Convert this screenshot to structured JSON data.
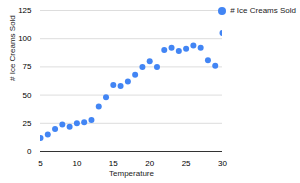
{
  "chart_data": {
    "type": "scatter",
    "x_label": "Temperature",
    "y_label": "# Ice Creams Sold",
    "x": [
      5,
      6,
      7,
      8,
      9,
      10,
      11,
      12,
      13,
      14,
      15,
      16,
      17,
      18,
      19,
      20,
      21,
      22,
      23,
      24,
      25,
      26,
      27,
      28,
      29,
      30
    ],
    "series": [
      {
        "name": "# Ice Creams Sold",
        "color": "#4285f4",
        "marker": "circle",
        "values": [
          12,
          15,
          20,
          24,
          22,
          25,
          26,
          28,
          40,
          48,
          59,
          58,
          62,
          68,
          75,
          80,
          75,
          90,
          92,
          89,
          91,
          94,
          92,
          81,
          76,
          105
        ]
      }
    ],
    "xlim": [
      5,
      30
    ],
    "xticks": [
      5,
      10,
      15,
      20,
      25,
      30
    ],
    "ylim": [
      0,
      125
    ],
    "yticks": [
      0,
      25,
      50,
      75,
      100,
      125
    ],
    "grid": true,
    "legend": "top-right"
  }
}
